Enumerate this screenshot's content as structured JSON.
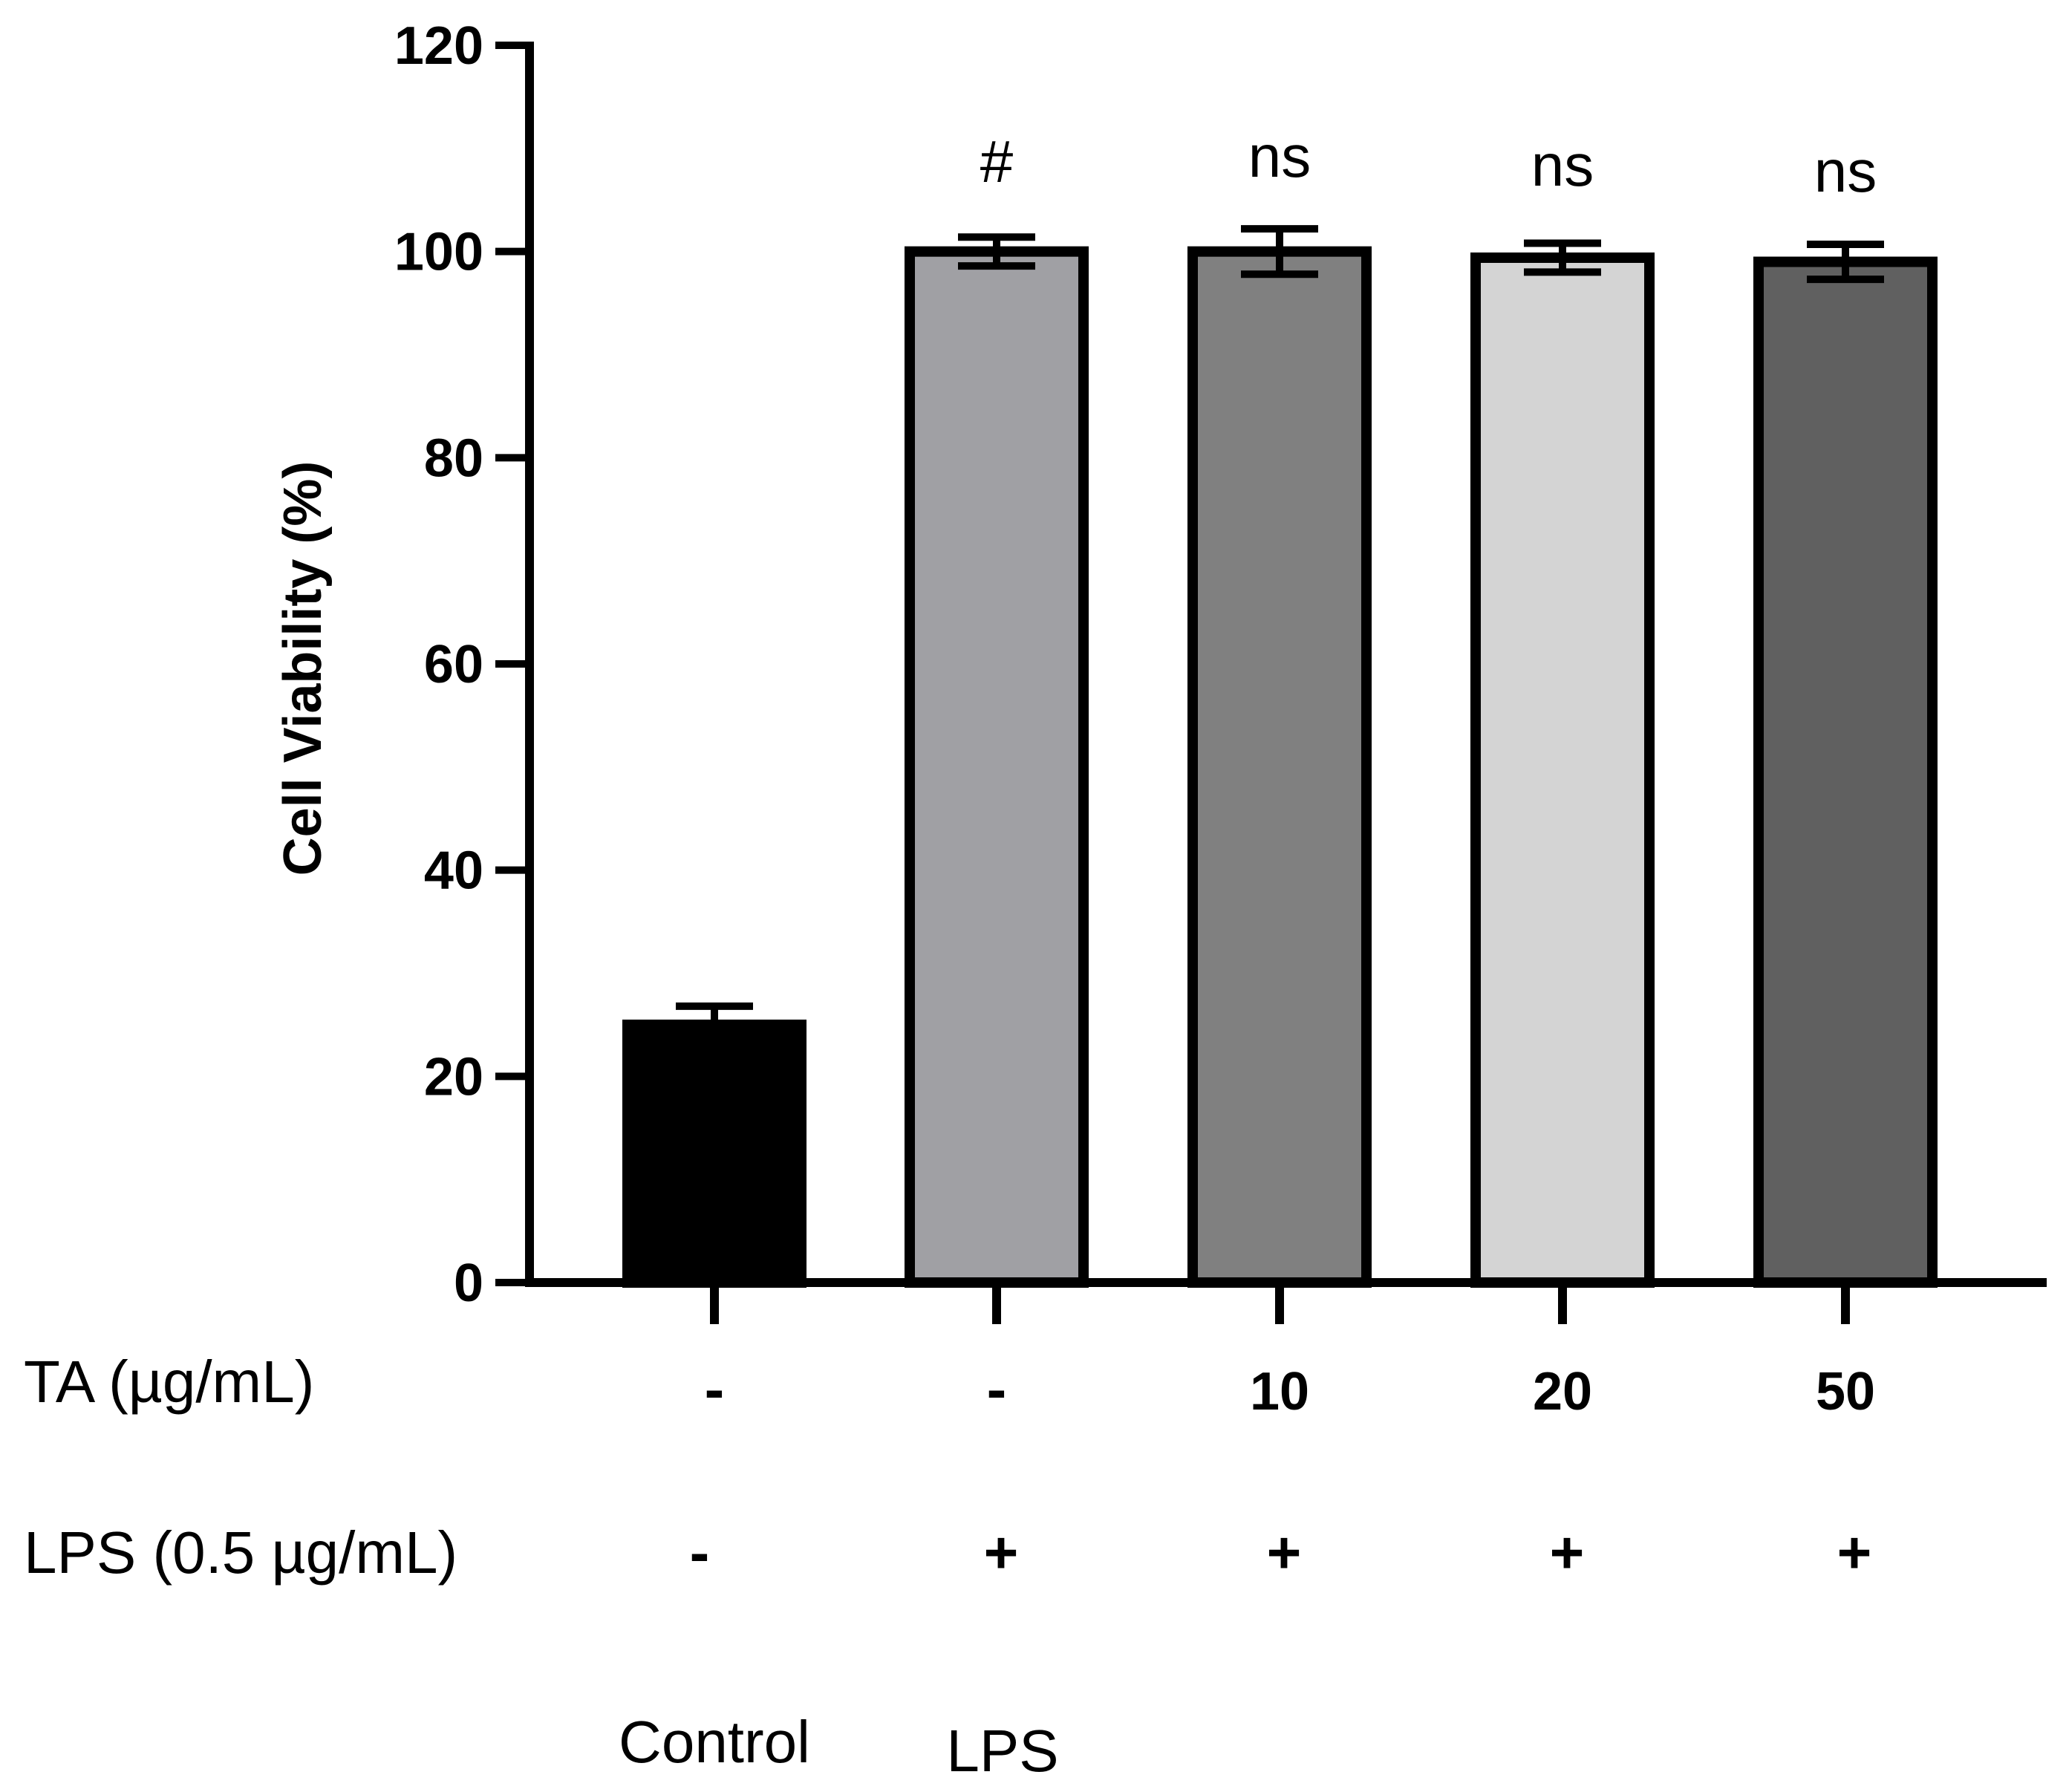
{
  "chart_data": {
    "type": "bar",
    "title": "",
    "xlabel": "",
    "ylabel": "Cell Viability (%)",
    "ylim": [
      0,
      120
    ],
    "yticks": [
      0,
      20,
      40,
      60,
      80,
      100,
      120
    ],
    "grid": false,
    "series": [
      {
        "name": "Cell Viability",
        "values": [
          25.0,
          100.0,
          100.0,
          99.4,
          99.0
        ],
        "errors": [
          1.8,
          1.4,
          2.2,
          1.4,
          1.7
        ],
        "annotations": [
          "",
          "#",
          "ns",
          "ns",
          "ns"
        ],
        "colors": [
          "#000000",
          "#a0a0a4",
          "#808080",
          "#d4d4d4",
          "#606060"
        ]
      }
    ],
    "treatment_rows": [
      {
        "label": "TA (µg/mL)",
        "values": [
          "-",
          "-",
          "10",
          "20",
          "50"
        ]
      },
      {
        "label": "LPS (0.5 µg/mL)",
        "values": [
          "-",
          "+",
          "+",
          "+",
          "+"
        ]
      }
    ],
    "group_names": [
      "Control",
      "LPS",
      "",
      "",
      ""
    ]
  }
}
